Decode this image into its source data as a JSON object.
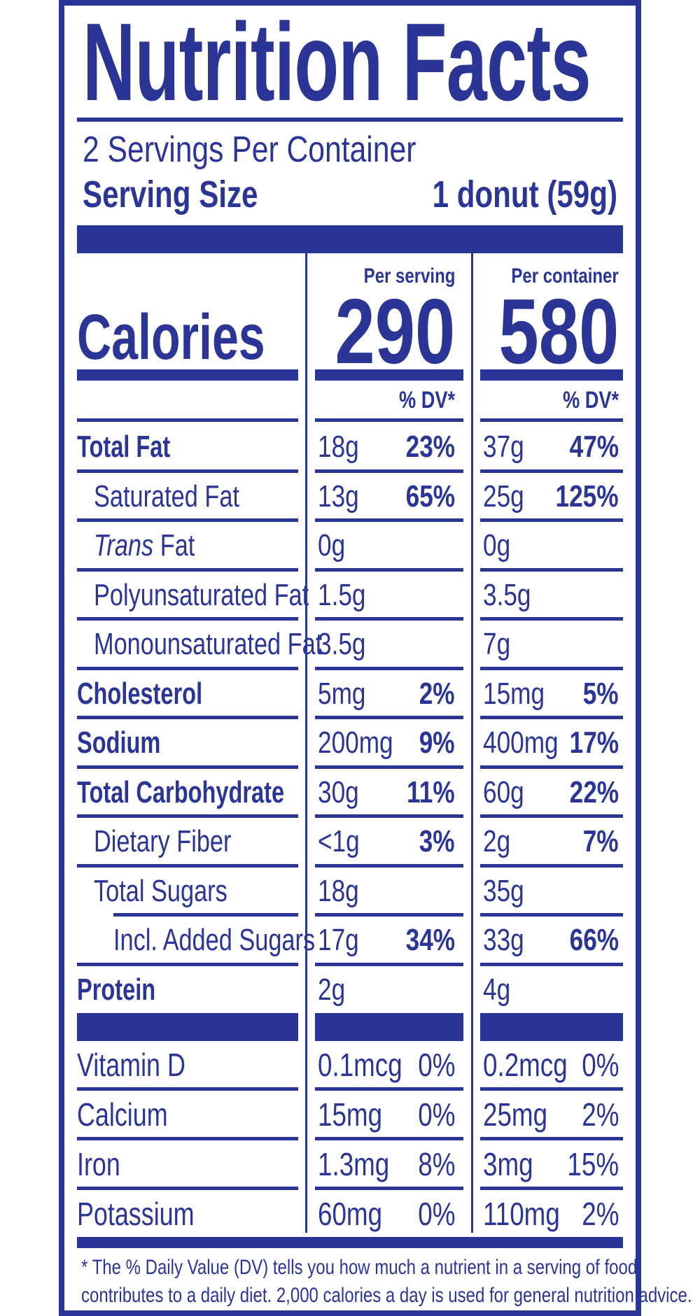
{
  "title": "Nutrition Facts",
  "servings_per_container": "2 Servings Per Container",
  "serving_size_label": "Serving Size",
  "serving_size_value": "1 donut (59g)",
  "calories_label": "Calories",
  "columns": [
    {
      "header": "Per serving",
      "calories": "290",
      "dv_header": "% DV*"
    },
    {
      "header": "Per container",
      "calories": "580",
      "dv_header": "% DV*"
    }
  ],
  "nutrients": [
    {
      "name": "Total Fat",
      "bold": true,
      "indent": 0,
      "serving": {
        "amount": "18g",
        "dv": "23%"
      },
      "container": {
        "amount": "37g",
        "dv": "47%"
      }
    },
    {
      "name": "Saturated Fat",
      "bold": false,
      "indent": 1,
      "serving": {
        "amount": "13g",
        "dv": "65%"
      },
      "container": {
        "amount": "25g",
        "dv": "125%"
      }
    },
    {
      "name_italic": "Trans",
      "name": " Fat",
      "bold": false,
      "indent": 1,
      "serving": {
        "amount": "0g",
        "dv": ""
      },
      "container": {
        "amount": "0g",
        "dv": ""
      }
    },
    {
      "name": "Polyunsaturated Fat",
      "bold": false,
      "indent": 1,
      "serving": {
        "amount": "1.5g",
        "dv": ""
      },
      "container": {
        "amount": "3.5g",
        "dv": ""
      }
    },
    {
      "name": "Monounsaturated Fat",
      "bold": false,
      "indent": 1,
      "serving": {
        "amount": "3.5g",
        "dv": ""
      },
      "container": {
        "amount": "7g",
        "dv": ""
      }
    },
    {
      "name": "Cholesterol",
      "bold": true,
      "indent": 0,
      "serving": {
        "amount": "5mg",
        "dv": "2%"
      },
      "container": {
        "amount": "15mg",
        "dv": "5%"
      }
    },
    {
      "name": "Sodium",
      "bold": true,
      "indent": 0,
      "serving": {
        "amount": "200mg",
        "dv": "9%"
      },
      "container": {
        "amount": "400mg",
        "dv": "17%"
      }
    },
    {
      "name": "Total Carbohydrate",
      "bold": true,
      "indent": 0,
      "serving": {
        "amount": "30g",
        "dv": "11%"
      },
      "container": {
        "amount": "60g",
        "dv": "22%"
      }
    },
    {
      "name": "Dietary Fiber",
      "bold": false,
      "indent": 1,
      "serving": {
        "amount": "<1g",
        "dv": "3%"
      },
      "container": {
        "amount": "2g",
        "dv": "7%"
      }
    },
    {
      "name": "Total Sugars",
      "bold": false,
      "indent": 1,
      "serving": {
        "amount": "18g",
        "dv": ""
      },
      "container": {
        "amount": "35g",
        "dv": ""
      }
    },
    {
      "name": "Incl. Added Sugars",
      "bold": false,
      "indent": 2,
      "serving": {
        "amount": "17g",
        "dv": "34%"
      },
      "container": {
        "amount": "33g",
        "dv": "66%"
      }
    },
    {
      "name": "Protein",
      "bold": true,
      "indent": 0,
      "serving": {
        "amount": "2g",
        "dv": ""
      },
      "container": {
        "amount": "4g",
        "dv": ""
      }
    }
  ],
  "vitamins": [
    {
      "name": "Vitamin D",
      "serving": {
        "amount": "0.1mcg",
        "dv": "0%"
      },
      "container": {
        "amount": "0.2mcg",
        "dv": "0%"
      }
    },
    {
      "name": "Calcium",
      "serving": {
        "amount": "15mg",
        "dv": "0%"
      },
      "container": {
        "amount": "25mg",
        "dv": "2%"
      }
    },
    {
      "name": "Iron",
      "serving": {
        "amount": "1.3mg",
        "dv": "8%"
      },
      "container": {
        "amount": "3mg",
        "dv": "15%"
      }
    },
    {
      "name": "Potassium",
      "serving": {
        "amount": "60mg",
        "dv": "0%"
      },
      "container": {
        "amount": "110mg",
        "dv": "2%"
      }
    }
  ],
  "footnote": [
    "* The % Daily Value (DV) tells you how much a nutrient in a serving of food",
    "contributes to a daily diet. 2,000 calories a day is used for general nutrition advice."
  ],
  "colors": {
    "ink": "#2b3596",
    "background": "#ffffff"
  }
}
